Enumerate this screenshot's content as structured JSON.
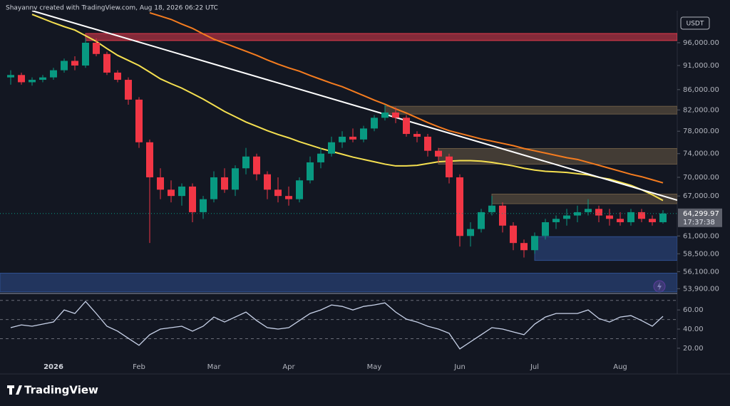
{
  "header": "Shayannv created with TradingView.com, Aug 18, 2026 06:22 UTC",
  "footer": {
    "logo": "TradingView"
  },
  "chart_data": {
    "type": "candlestick",
    "currency": "USDT",
    "log_scale": true,
    "up_color": "#089981",
    "down_color": "#f23645",
    "categories": [
      null,
      null,
      null,
      null,
      "2026",
      null,
      null,
      null,
      null,
      null,
      null,
      null,
      "Feb",
      null,
      null,
      null,
      null,
      null,
      null,
      "Mar",
      null,
      null,
      null,
      null,
      null,
      null,
      "Apr",
      null,
      null,
      null,
      null,
      null,
      null,
      null,
      "May",
      null,
      null,
      null,
      null,
      null,
      null,
      null,
      "Jun",
      null,
      null,
      null,
      null,
      null,
      null,
      "Jul",
      null,
      null,
      null,
      null,
      null,
      null,
      null,
      "Aug",
      null,
      null,
      null,
      null
    ],
    "open": [
      88500,
      89000,
      87500,
      88000,
      88500,
      90000,
      92000,
      91000,
      96000,
      93500,
      89500,
      88000,
      84000,
      76000,
      70000,
      68000,
      67000,
      68500,
      64500,
      66500,
      70000,
      68000,
      71500,
      73500,
      70500,
      68000,
      67000,
      66500,
      69500,
      72500,
      74000,
      76000,
      77000,
      76500,
      78500,
      80500,
      81500,
      80500,
      77500,
      77000,
      74500,
      73500,
      70000,
      61000,
      62000,
      64500,
      65500,
      62500,
      60000,
      59000,
      61000,
      63000,
      63500,
      64000,
      64500,
      65000,
      64000,
      63500,
      63000,
      64500,
      63500,
      63000
    ],
    "high": [
      90000,
      89500,
      88500,
      89000,
      90500,
      92500,
      93000,
      97000,
      97000,
      94000,
      90000,
      88500,
      84500,
      76500,
      71500,
      69500,
      69000,
      69000,
      67000,
      71000,
      71500,
      72000,
      75000,
      74000,
      71000,
      70000,
      68500,
      70000,
      73500,
      75000,
      77000,
      78000,
      78500,
      79000,
      81000,
      83000,
      82500,
      81000,
      78000,
      77500,
      75000,
      74000,
      70500,
      63000,
      65000,
      67000,
      66000,
      63000,
      60500,
      61500,
      63500,
      64000,
      65000,
      65500,
      66500,
      65500,
      65000,
      64500,
      65000,
      65000,
      64000,
      64800
    ],
    "low": [
      87000,
      87000,
      86800,
      87500,
      88000,
      89500,
      90000,
      90500,
      93000,
      89000,
      87500,
      83000,
      75000,
      60000,
      66500,
      66000,
      65500,
      63000,
      63500,
      66000,
      67500,
      67000,
      70500,
      69500,
      66500,
      66000,
      65500,
      66000,
      69000,
      71500,
      73500,
      75000,
      76000,
      76000,
      78000,
      80000,
      79500,
      77000,
      76000,
      73500,
      72500,
      69000,
      59500,
      59500,
      61500,
      64000,
      61500,
      59000,
      58000,
      58500,
      60500,
      62000,
      62500,
      63000,
      64000,
      63000,
      62500,
      62500,
      62500,
      63000,
      62500,
      62800
    ],
    "close": [
      89000,
      87500,
      88000,
      88500,
      90000,
      92000,
      91000,
      96000,
      93500,
      89500,
      88000,
      84000,
      76000,
      70000,
      68000,
      67000,
      68500,
      64500,
      66500,
      70000,
      68000,
      71500,
      73500,
      70500,
      68000,
      67000,
      66500,
      69500,
      72500,
      74000,
      76000,
      77000,
      76500,
      78500,
      80500,
      81500,
      80500,
      77500,
      77000,
      74500,
      73500,
      70000,
      61000,
      62000,
      64500,
      65500,
      62500,
      60000,
      59000,
      61000,
      63000,
      63500,
      64000,
      64500,
      65000,
      64000,
      63500,
      63000,
      64500,
      63500,
      63000,
      64299.97
    ],
    "moving_averages": [
      {
        "color": "#f5e050",
        "values": [
          null,
          null,
          102600,
          101600,
          100600,
          99700,
          98900,
          97600,
          96300,
          94700,
          93200,
          92100,
          91000,
          89600,
          88200,
          87200,
          86300,
          85200,
          84100,
          82900,
          81700,
          80700,
          79700,
          78900,
          78100,
          77400,
          76800,
          76100,
          75500,
          74900,
          74400,
          73900,
          73400,
          73000,
          72600,
          72200,
          71900,
          71900,
          72000,
          72300,
          72600,
          72700,
          72800,
          72800,
          72700,
          72500,
          72200,
          71900,
          71500,
          71200,
          71000,
          70900,
          70800,
          70600,
          70400,
          70000,
          69700,
          69200,
          68700,
          68000,
          67200,
          66300
        ]
      },
      {
        "color": "#f57c1f",
        "values": [
          null,
          null,
          null,
          null,
          null,
          null,
          null,
          null,
          null,
          null,
          null,
          null,
          null,
          103000,
          102200,
          101400,
          100300,
          99300,
          98000,
          96800,
          95900,
          95000,
          94100,
          93200,
          92200,
          91300,
          90500,
          89800,
          88900,
          88100,
          87300,
          86600,
          85700,
          84800,
          83900,
          83100,
          82200,
          81400,
          80500,
          79600,
          78800,
          78100,
          77600,
          77100,
          76600,
          76200,
          75800,
          75400,
          74900,
          74500,
          74100,
          73700,
          73300,
          73000,
          72500,
          72000,
          71500,
          71000,
          70500,
          70100,
          69600,
          69100
        ]
      }
    ],
    "trendline": {
      "color": "#ffffff",
      "points": [
        [
          2,
          103500
        ],
        [
          61,
          67000
        ]
      ]
    },
    "zones": [
      {
        "start": 7,
        "low": 96500,
        "high": 98100,
        "color": "#e23b4d"
      },
      {
        "start": 35,
        "low": 81200,
        "high": 82700,
        "color": "#6b5b45"
      },
      {
        "start": 40,
        "low": 72200,
        "high": 74900,
        "color": "#6b5b45"
      },
      {
        "start": 45,
        "low": 65800,
        "high": 67300,
        "color": "#6b5b45"
      },
      {
        "start": 49,
        "low": 57600,
        "high": 60900,
        "color": "#2f4f8f"
      },
      {
        "start": 0,
        "low": 53500,
        "high": 55900,
        "color": "#2f4f8f"
      }
    ],
    "ylim": [
      53300,
      103500
    ],
    "yticks": [
      {
        "value": 96000,
        "label": "96,000.00"
      },
      {
        "value": 91000,
        "label": "91,000.00"
      },
      {
        "value": 86000,
        "label": "86,000.00"
      },
      {
        "value": 82000,
        "label": "82,000.00"
      },
      {
        "value": 78000,
        "label": "78,000.00"
      },
      {
        "value": 74000,
        "label": "74,000.00"
      },
      {
        "value": 70000,
        "label": "70,000.00"
      },
      {
        "value": 67000,
        "label": "67,000.00"
      },
      {
        "value": 61000,
        "label": "61,000.00"
      },
      {
        "value": 58500,
        "label": "58,500.00"
      },
      {
        "value": 56100,
        "label": "56,100.00"
      },
      {
        "value": 53900,
        "label": "53,900.00"
      }
    ],
    "last_price": {
      "value": 64299.97,
      "label": "64,299.97",
      "countdown": "17:37:38"
    },
    "rsi": {
      "color": "#c9d3ea",
      "values": [
        41.5,
        44.4,
        43.0,
        45.2,
        47.4,
        60,
        56.3,
        68.9,
        56.3,
        43.0,
        37.8,
        30.4,
        23.0,
        34.1,
        40.0,
        41.5,
        43.0,
        37.8,
        43.0,
        52.6,
        47.4,
        52.6,
        57.8,
        48.9,
        41.5,
        40.0,
        41.5,
        48.9,
        56.3,
        60,
        65.2,
        63.7,
        60,
        63.7,
        65.2,
        67.4,
        57.8,
        50.4,
        47.4,
        43.0,
        40.0,
        35.6,
        19.3,
        26.7,
        34.1,
        41.5,
        40.0,
        37.0,
        34.1,
        45.2,
        52.6,
        56.3,
        56.3,
        56.3,
        60,
        51.1,
        47.4,
        52.6,
        54.1,
        48.9,
        43.0,
        53.3
      ],
      "ylim": [
        8,
        75
      ],
      "levels": [
        70,
        50,
        30
      ],
      "yticks": [
        {
          "value": 60,
          "label": "60.00"
        },
        {
          "value": 40,
          "label": "40.00"
        },
        {
          "value": 20,
          "label": "20.00"
        }
      ]
    }
  }
}
